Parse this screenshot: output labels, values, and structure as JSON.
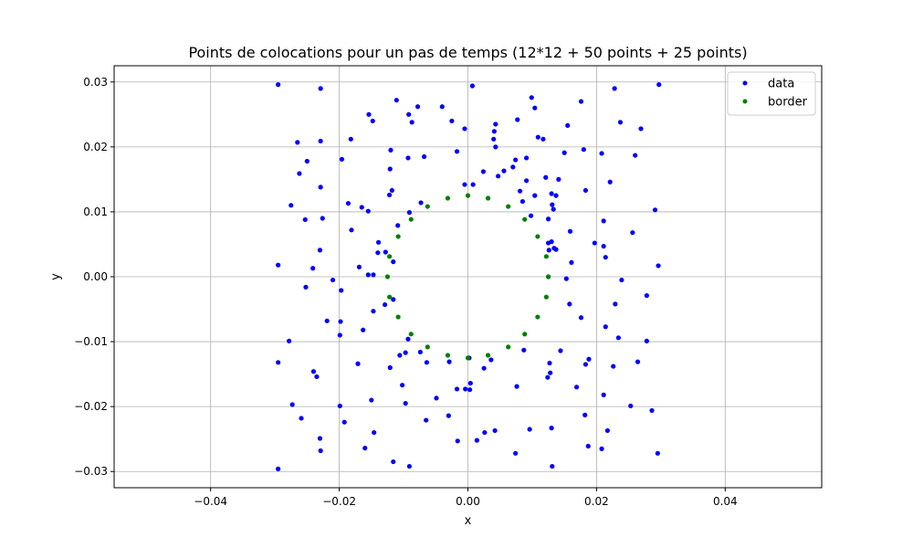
{
  "chart_data": {
    "type": "scatter",
    "title": "Points de colocations pour un pas de temps (12*12 + 50 points + 25 points)",
    "xlabel": "x",
    "ylabel": "y",
    "xlim": [
      -0.055,
      0.055
    ],
    "ylim": [
      -0.0325,
      0.0325
    ],
    "xticks": [
      -0.04,
      -0.02,
      0.0,
      0.02,
      0.04
    ],
    "xtick_labels": [
      "−0.04",
      "−0.02",
      "0.00",
      "0.02",
      "0.04"
    ],
    "yticks": [
      -0.03,
      -0.02,
      -0.01,
      0.0,
      0.01,
      0.02,
      0.03
    ],
    "ytick_labels": [
      "−0.03",
      "−0.02",
      "−0.01",
      "0.00",
      "0.01",
      "0.02",
      "0.03"
    ],
    "grid": true,
    "legend_position": "top-right",
    "series": [
      {
        "name": "data",
        "color": "#0000ff",
        "points": [
          [
            -0.0295,
            0.0296
          ],
          [
            -0.0229,
            0.029
          ],
          [
            -0.0111,
            0.0272
          ],
          [
            -0.0078,
            0.0262
          ],
          [
            -0.004,
            0.0262
          ],
          [
            0.0007,
            0.0294
          ],
          [
            0.0099,
            0.0276
          ],
          [
            0.0104,
            0.026
          ],
          [
            0.0176,
            0.027
          ],
          [
            0.0228,
            0.029
          ],
          [
            0.0297,
            0.0296
          ],
          [
            -0.0154,
            0.025
          ],
          [
            -0.0148,
            0.024
          ],
          [
            -0.0092,
            0.025
          ],
          [
            -0.0087,
            0.0238
          ],
          [
            -0.0025,
            0.024
          ],
          [
            -0.0005,
            0.0228
          ],
          [
            0.0043,
            0.0235
          ],
          [
            0.0041,
            0.0224
          ],
          [
            0.0077,
            0.0242
          ],
          [
            0.0155,
            0.0233
          ],
          [
            0.0237,
            0.0238
          ],
          [
            0.0269,
            0.0228
          ],
          [
            -0.0265,
            0.0207
          ],
          [
            -0.0229,
            0.0209
          ],
          [
            -0.0182,
            0.0212
          ],
          [
            -0.012,
            0.0195
          ],
          [
            -0.0068,
            0.0185
          ],
          [
            -0.0017,
            0.0193
          ],
          [
            0.004,
            0.0212
          ],
          [
            0.0043,
            0.02
          ],
          [
            0.0056,
            0.0163
          ],
          [
            0.0109,
            0.0215
          ],
          [
            0.0117,
            0.0212
          ],
          [
            0.015,
            0.0191
          ],
          [
            0.018,
            0.0196
          ],
          [
            0.0208,
            0.019
          ],
          [
            0.026,
            0.0187
          ],
          [
            -0.0262,
            0.0159
          ],
          [
            -0.025,
            0.0178
          ],
          [
            -0.0196,
            0.0181
          ],
          [
            -0.0121,
            0.0166
          ],
          [
            -0.0093,
            0.0183
          ],
          [
            0.0024,
            0.0162
          ],
          [
            0.0047,
            0.0155
          ],
          [
            0.007,
            0.0169
          ],
          [
            0.0074,
            0.018
          ],
          [
            0.0091,
            0.0183
          ],
          [
            0.0121,
            0.0153
          ],
          [
            0.0141,
            0.015
          ],
          [
            0.0183,
            0.0133
          ],
          [
            0.0221,
            0.0146
          ],
          [
            -0.0275,
            0.011
          ],
          [
            -0.0229,
            0.0138
          ],
          [
            -0.0186,
            0.0113
          ],
          [
            -0.0165,
            0.0107
          ],
          [
            -0.0118,
            0.0133
          ],
          [
            -0.0122,
            0.0126
          ],
          [
            -0.0073,
            0.0114
          ],
          [
            -0.0091,
            0.0099
          ],
          [
            -0.0005,
            0.0142
          ],
          [
            0.0008,
            0.0142
          ],
          [
            0.0081,
            0.0132
          ],
          [
            0.0085,
            0.0116
          ],
          [
            0.0091,
            0.0148
          ],
          [
            0.0098,
            0.0094
          ],
          [
            0.0104,
            0.0125
          ],
          [
            0.013,
            0.0128
          ],
          [
            0.0131,
            0.0111
          ],
          [
            0.0133,
            0.0104
          ],
          [
            0.0137,
            0.0125
          ],
          [
            -0.0253,
            0.0088
          ],
          [
            -0.0226,
            0.009
          ],
          [
            -0.0181,
            0.0072
          ],
          [
            -0.0155,
            0.0101
          ],
          [
            -0.0109,
            0.0079
          ],
          [
            0.0125,
            0.0089
          ],
          [
            0.0159,
            0.007
          ],
          [
            0.0211,
            0.0086
          ],
          [
            0.0256,
            0.0068
          ],
          [
            0.0291,
            0.0103
          ],
          [
            -0.023,
            0.0041
          ],
          [
            -0.0241,
            0.0013
          ],
          [
            -0.0169,
            0.0015
          ],
          [
            -0.0139,
            0.0053
          ],
          [
            -0.014,
            0.0037
          ],
          [
            -0.0128,
            0.0038
          ],
          [
            -0.0116,
            0.0023
          ],
          [
            0.0125,
            0.0052
          ],
          [
            0.013,
            0.0054
          ],
          [
            0.0134,
            0.0044
          ],
          [
            0.0126,
            0.0041
          ],
          [
            0.0137,
            0.0042
          ],
          [
            0.0161,
            0.0022
          ],
          [
            0.0197,
            0.0052
          ],
          [
            0.0211,
            0.0047
          ],
          [
            0.0214,
            0.003
          ],
          [
            -0.0295,
            0.0018
          ],
          [
            -0.021,
            -0.0005
          ],
          [
            -0.0155,
            0.0003
          ],
          [
            -0.0147,
            0.0003
          ],
          [
            -0.0252,
            -0.0016
          ],
          [
            -0.0197,
            -0.0021
          ],
          [
            -0.0116,
            -0.0035
          ],
          [
            -0.0147,
            -0.0053
          ],
          [
            0.0153,
            -0.0003
          ],
          [
            0.0158,
            -0.0042
          ],
          [
            0.0239,
            -0.0005
          ],
          [
            0.0296,
            0.0017
          ],
          [
            -0.0219,
            -0.0068
          ],
          [
            -0.0198,
            -0.0069
          ],
          [
            -0.0199,
            -0.009
          ],
          [
            -0.0163,
            -0.0082
          ],
          [
            -0.0129,
            -0.0043
          ],
          [
            0.0176,
            -0.0063
          ],
          [
            0.0214,
            -0.0077
          ],
          [
            0.0229,
            -0.0042
          ],
          [
            0.0278,
            -0.0029
          ],
          [
            -0.0278,
            -0.0099
          ],
          [
            -0.0093,
            -0.0096
          ],
          [
            -0.0097,
            -0.0117
          ],
          [
            -0.0106,
            -0.0121
          ],
          [
            -0.0074,
            -0.0116
          ],
          [
            0.0188,
            -0.0127
          ],
          [
            0.0183,
            -0.0135
          ],
          [
            0.0234,
            -0.0094
          ],
          [
            0.0278,
            -0.0099
          ],
          [
            -0.0295,
            -0.0132
          ],
          [
            -0.0171,
            -0.0134
          ],
          [
            -0.0121,
            -0.014
          ],
          [
            -0.0064,
            -0.0132
          ],
          [
            -0.0029,
            -0.0131
          ],
          [
            0.0002,
            -0.0125
          ],
          [
            0.0087,
            -0.0113
          ],
          [
            0.0144,
            -0.0114
          ],
          [
            0.0127,
            -0.0133
          ],
          [
            0.0124,
            -0.0155
          ],
          [
            0.0128,
            -0.0148
          ],
          [
            0.0226,
            -0.0138
          ],
          [
            0.0264,
            -0.0131
          ],
          [
            -0.024,
            -0.0146
          ],
          [
            -0.0235,
            -0.0154
          ],
          [
            -0.0102,
            -0.0167
          ],
          [
            -0.0049,
            -0.0187
          ],
          [
            -0.0017,
            -0.0173
          ],
          [
            -0.0004,
            -0.0173
          ],
          [
            0.0003,
            -0.0174
          ],
          [
            0.0004,
            -0.0164
          ],
          [
            0.0025,
            -0.0141
          ],
          [
            0.0036,
            -0.0128
          ],
          [
            0.0076,
            -0.0169
          ],
          [
            0.0169,
            -0.017
          ],
          [
            0.0211,
            -0.0182
          ],
          [
            -0.0273,
            -0.0197
          ],
          [
            -0.0199,
            -0.0199
          ],
          [
            -0.015,
            -0.019
          ],
          [
            -0.0097,
            -0.0195
          ],
          [
            -0.0259,
            -0.0218
          ],
          [
            -0.0192,
            -0.0224
          ],
          [
            -0.0065,
            -0.0221
          ],
          [
            -0.003,
            -0.0214
          ],
          [
            0.0096,
            -0.0235
          ],
          [
            0.013,
            -0.0233
          ],
          [
            0.0182,
            -0.0213
          ],
          [
            0.0217,
            -0.0237
          ],
          [
            0.0253,
            -0.0199
          ],
          [
            0.0286,
            -0.0206
          ],
          [
            -0.023,
            -0.0249
          ],
          [
            -0.0229,
            -0.0268
          ],
          [
            -0.016,
            -0.0264
          ],
          [
            -0.0146,
            -0.024
          ],
          [
            -0.0016,
            -0.0253
          ],
          [
            0.0014,
            -0.0252
          ],
          [
            0.0026,
            -0.024
          ],
          [
            0.0042,
            -0.0237
          ],
          [
            0.0074,
            -0.0272
          ],
          [
            0.0187,
            -0.0261
          ],
          [
            0.0208,
            -0.0265
          ],
          [
            0.0295,
            -0.0272
          ],
          [
            -0.0295,
            -0.0296
          ],
          [
            -0.0116,
            -0.0285
          ],
          [
            -0.0091,
            -0.0292
          ],
          [
            0.0131,
            -0.0292
          ]
        ]
      },
      {
        "name": "border",
        "color": "#008000",
        "points": [
          [
            0.0125,
            0.0
          ],
          [
            0.01219,
            0.00312
          ],
          [
            0.01084,
            0.0062
          ],
          [
            0.00883,
            0.00884
          ],
          [
            0.00627,
            0.01082
          ],
          [
            0.00313,
            0.0121
          ],
          [
            0.0,
            0.0125
          ],
          [
            -0.00313,
            0.0121
          ],
          [
            -0.00627,
            0.01082
          ],
          [
            -0.00883,
            0.00884
          ],
          [
            -0.01084,
            0.0062
          ],
          [
            -0.01219,
            0.00312
          ],
          [
            -0.0125,
            0.0
          ],
          [
            -0.01219,
            -0.00312
          ],
          [
            -0.01084,
            -0.0062
          ],
          [
            -0.00883,
            -0.00884
          ],
          [
            -0.00627,
            -0.01082
          ],
          [
            -0.00313,
            -0.0121
          ],
          [
            0.0,
            -0.0125
          ],
          [
            0.00313,
            -0.0121
          ],
          [
            0.00627,
            -0.01082
          ],
          [
            0.00883,
            -0.00884
          ],
          [
            0.01084,
            -0.0062
          ],
          [
            0.01219,
            -0.00312
          ],
          [
            0.0125,
            0.0
          ]
        ]
      }
    ]
  }
}
